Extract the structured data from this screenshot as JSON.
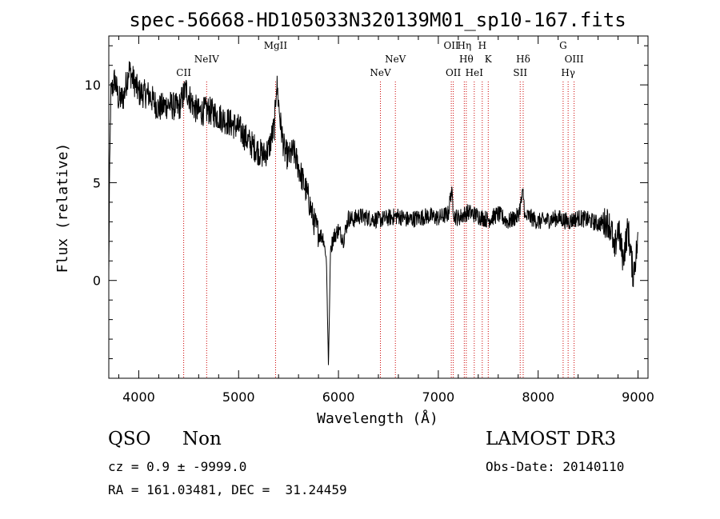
{
  "chart_data": {
    "type": "line",
    "title": "spec-56668-HD105033N320139M01_sp10-167.fits",
    "xlabel": "Wavelength (Å)",
    "ylabel": "Flux (relative)",
    "xlim": [
      3700,
      9100
    ],
    "ylim": [
      -5,
      12.5
    ],
    "x_ticks": [
      "4000",
      "5000",
      "6000",
      "7000",
      "8000",
      "9000"
    ],
    "y_ticks": [
      "0",
      "5",
      "10"
    ],
    "grid": false,
    "line_color": "#000000",
    "marker_color": "#cc0000",
    "spectrum_anchors": {
      "x": [
        3700,
        3705,
        3720,
        3760,
        3800,
        3850,
        3900,
        3950,
        4000,
        4100,
        4200,
        4300,
        4400,
        4470,
        4550,
        4600,
        4700,
        4800,
        4900,
        5000,
        5100,
        5200,
        5250,
        5300,
        5360,
        5380,
        5420,
        5460,
        5500,
        5550,
        5600,
        5650,
        5700,
        5750,
        5800,
        5850,
        5880,
        5900,
        5920,
        5950,
        6000,
        6050,
        6100,
        6150,
        6200,
        6300,
        6400,
        6500,
        6600,
        6700,
        6800,
        6900,
        7000,
        7100,
        7130,
        7160,
        7200,
        7300,
        7400,
        7500,
        7600,
        7700,
        7800,
        7850,
        7870,
        7900,
        8000,
        8100,
        8200,
        8300,
        8400,
        8500,
        8600,
        8700,
        8740,
        8760,
        8800,
        8850,
        8900,
        8950,
        9000
      ],
      "y": [
        0.2,
        4,
        9.5,
        10.3,
        9.2,
        9.4,
        10.8,
        10.2,
        9.6,
        9.5,
        8.8,
        9.0,
        8.8,
        9.8,
        8.9,
        8.6,
        8.7,
        8.4,
        8.1,
        7.8,
        7.1,
        6.6,
        6.4,
        6.7,
        7.9,
        10.2,
        8.0,
        6.6,
        6.3,
        6.6,
        5.8,
        5.0,
        4.2,
        3.1,
        2.4,
        2.2,
        1.0,
        -4.5,
        1.6,
        2.2,
        2.6,
        2.1,
        3.2,
        3.1,
        3.3,
        3.2,
        3.1,
        3.2,
        3.3,
        3.1,
        3.2,
        3.3,
        3.2,
        3.4,
        4.6,
        3.3,
        3.2,
        3.5,
        3.3,
        3.1,
        3.4,
        3.0,
        3.3,
        4.5,
        3.1,
        3.3,
        3.0,
        3.1,
        3.2,
        3.0,
        3.2,
        3.1,
        2.9,
        3.0,
        2.5,
        1.3,
        2.7,
        1.1,
        2.7,
        0.3,
        2.0
      ]
    },
    "line_markers": [
      {
        "name": "CII",
        "x": 4450,
        "row": 2
      },
      {
        "name": "NeIV",
        "x": 4680,
        "row": 1
      },
      {
        "name": "MgII",
        "x": 5370,
        "row": 0
      },
      {
        "name": "NeV",
        "x": 6420,
        "row": 2
      },
      {
        "name": "NeV",
        "x": 6570,
        "row": 1
      },
      {
        "name": "OII",
        "x": 7130,
        "row": 0
      },
      {
        "name": "OII",
        "x": 7150,
        "row": 2
      },
      {
        "name": "Hη",
        "x": 7260,
        "row": 0
      },
      {
        "name": "Hθ",
        "x": 7280,
        "row": 1
      },
      {
        "name": "HeI",
        "x": 7360,
        "row": 2
      },
      {
        "name": "H",
        "x": 7440,
        "row": 0
      },
      {
        "name": "K",
        "x": 7500,
        "row": 1
      },
      {
        "name": "Hδ",
        "x": 7850,
        "row": 1
      },
      {
        "name": "SII",
        "x": 7820,
        "row": 2
      },
      {
        "name": "G",
        "x": 8250,
        "row": 0
      },
      {
        "name": "OIII",
        "x": 8360,
        "row": 1
      },
      {
        "name": "Hγ",
        "x": 8300,
        "row": 2
      }
    ]
  },
  "info": {
    "class": "QSO",
    "subclass": "Non",
    "survey": "LAMOST DR3",
    "cz": "cz = 0.9 ± -9999.0",
    "obs_date": "Obs-Date: 20140110",
    "coords": "RA = 161.03481, DEC =  31.24459"
  }
}
